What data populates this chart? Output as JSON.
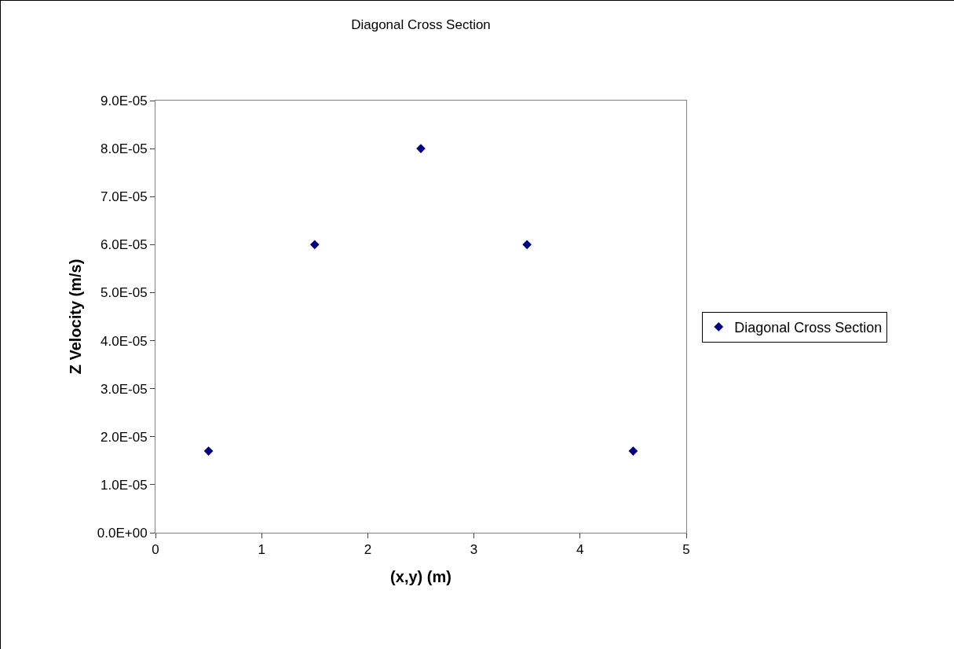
{
  "chart_data": {
    "type": "scatter",
    "title": "Diagonal Cross Section",
    "xlabel": "(x,y) (m)",
    "ylabel": "Z Velocity (m/s)",
    "x": [
      0.5,
      1.5,
      2.5,
      3.5,
      4.5
    ],
    "series": [
      {
        "name": "Diagonal Cross Section",
        "color": "#000080",
        "values": [
          1.7e-05,
          6e-05,
          8e-05,
          6e-05,
          1.7e-05
        ]
      }
    ],
    "xlim": [
      0,
      5
    ],
    "xticks": [
      0,
      1,
      2,
      3,
      4,
      5
    ],
    "ylim": [
      0,
      9e-05
    ],
    "yticks": [
      {
        "value": 0,
        "label": "0.0E+00"
      },
      {
        "value": 1e-05,
        "label": "1.0E-05"
      },
      {
        "value": 2e-05,
        "label": "2.0E-05"
      },
      {
        "value": 3e-05,
        "label": "3.0E-05"
      },
      {
        "value": 4e-05,
        "label": "4.0E-05"
      },
      {
        "value": 5e-05,
        "label": "5.0E-05"
      },
      {
        "value": 6e-05,
        "label": "6.0E-05"
      },
      {
        "value": 7e-05,
        "label": "7.0E-05"
      },
      {
        "value": 8e-05,
        "label": "8.0E-05"
      },
      {
        "value": 9e-05,
        "label": "9.0E-05"
      }
    ],
    "grid": false,
    "legend": "right",
    "marker": "diamond"
  }
}
